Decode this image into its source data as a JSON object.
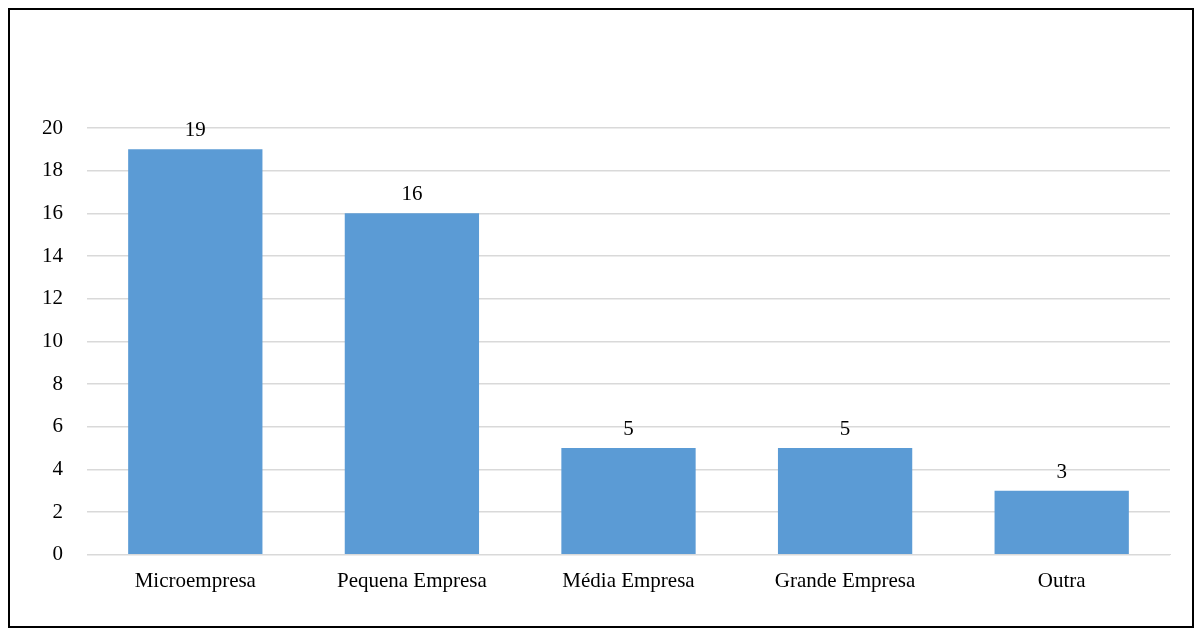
{
  "chart_data": {
    "type": "bar",
    "categories": [
      "Microempresa",
      "Pequena Empresa",
      "Média Empresa",
      "Grande Empresa",
      "Outra"
    ],
    "values": [
      19,
      16,
      5,
      5,
      3
    ],
    "color": "#5b9bd5",
    "ylim": [
      0,
      20
    ],
    "yticks": [
      0,
      2,
      4,
      6,
      8,
      10,
      12,
      14,
      16,
      18,
      20
    ],
    "grid": "y",
    "data_labels": true,
    "legend": false
  }
}
